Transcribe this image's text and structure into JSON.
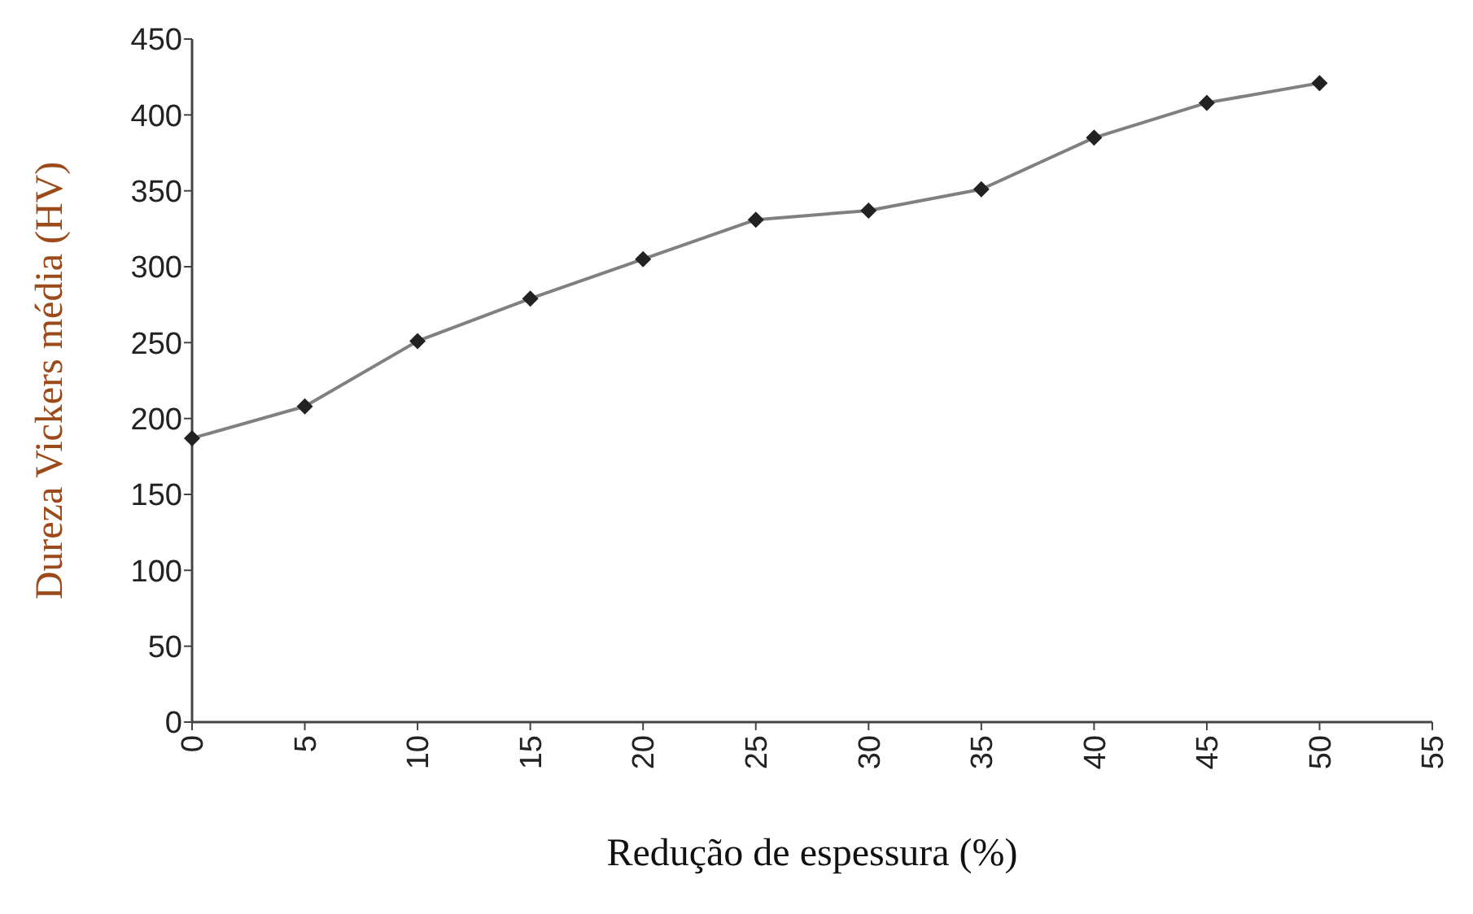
{
  "chart_data": {
    "type": "line",
    "xlabel": "Redução de espessura (%)",
    "ylabel": "Dureza Vickers média (HV)",
    "x": [
      0,
      5,
      10,
      15,
      20,
      25,
      30,
      35,
      40,
      45,
      50
    ],
    "series": [
      {
        "color": "#808080",
        "values": [
          187,
          208,
          251,
          279,
          305,
          331,
          337,
          351,
          385,
          408,
          421
        ]
      }
    ],
    "xlim": [
      0,
      55
    ],
    "xticks": [
      0,
      5,
      10,
      15,
      20,
      25,
      30,
      35,
      40,
      45,
      50,
      55
    ],
    "ylim": [
      0,
      450
    ],
    "yticks": [
      0,
      50,
      100,
      150,
      200,
      250,
      300,
      350,
      400,
      450
    ],
    "grid": false,
    "marker": "diamond",
    "line_style": "solid"
  }
}
